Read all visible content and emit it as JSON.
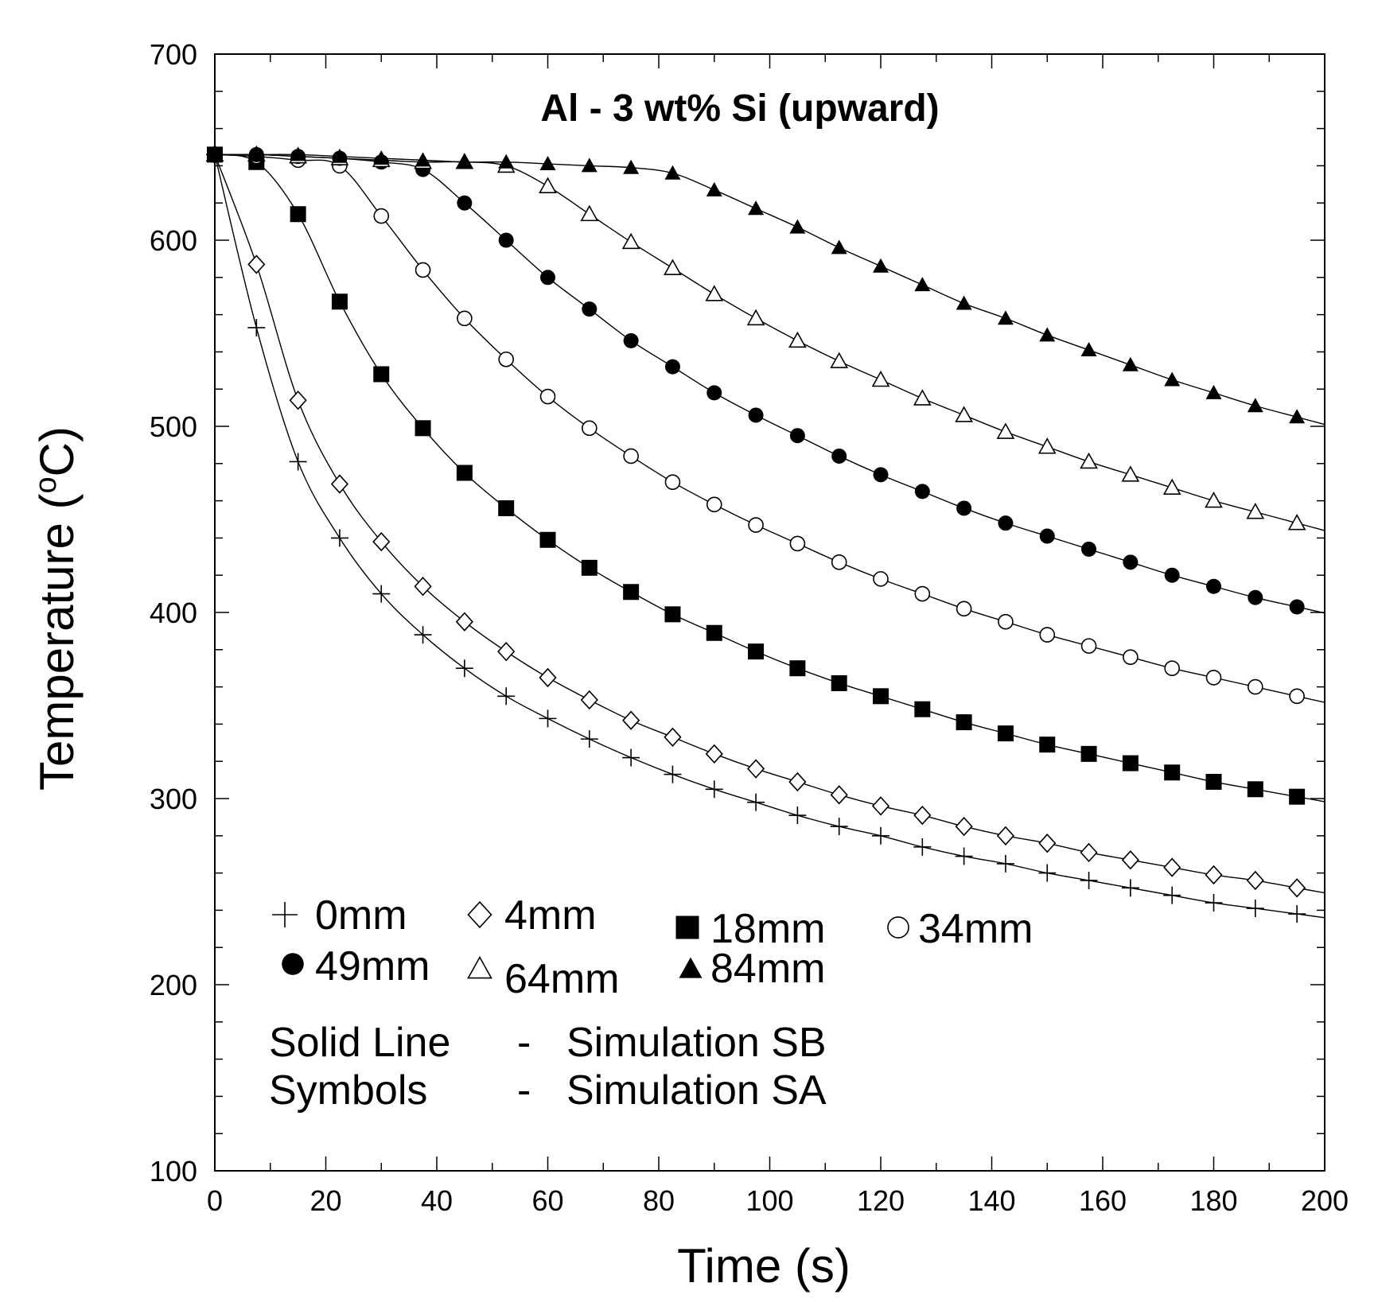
{
  "chart_data": {
    "type": "line",
    "title": "Al - 3 wt% Si (upward)",
    "xlabel": "Time (s)",
    "ylabel_main": "Temperature (",
    "ylabel_sup": "o",
    "ylabel_end": "C)",
    "xlim": [
      0,
      200
    ],
    "ylim": [
      100,
      700
    ],
    "xticks": [
      0,
      20,
      40,
      60,
      80,
      100,
      120,
      140,
      160,
      180,
      200
    ],
    "yticks": [
      100,
      200,
      300,
      400,
      500,
      600,
      700
    ],
    "grid": false,
    "line_note": {
      "left": "Solid Line",
      "dash": "-",
      "right": "Simulation SB"
    },
    "symbol_note": {
      "left": "Symbols",
      "dash": "-",
      "right": "Simulation SA"
    },
    "series": [
      {
        "name": "0mm",
        "marker": "plus",
        "x": [
          0,
          7.5,
          15,
          22.5,
          30,
          37.5,
          45,
          52.5,
          60,
          67.5,
          75,
          82.5,
          90,
          97.5,
          105,
          112.5,
          120,
          127.5,
          135,
          142.5,
          150,
          157.5,
          165,
          172.5,
          180,
          187.5,
          195
        ],
        "values": [
          646,
          553,
          481,
          440,
          410,
          388,
          370,
          355,
          343,
          332,
          322,
          313,
          305,
          298,
          291,
          285,
          280,
          274,
          269,
          265,
          260,
          256,
          252,
          248,
          244,
          241,
          238
        ]
      },
      {
        "name": "4mm",
        "marker": "diamond-open",
        "x": [
          0,
          7.5,
          15,
          22.5,
          30,
          37.5,
          45,
          52.5,
          60,
          67.5,
          75,
          82.5,
          90,
          97.5,
          105,
          112.5,
          120,
          127.5,
          135,
          142.5,
          150,
          157.5,
          165,
          172.5,
          180,
          187.5,
          195
        ],
        "values": [
          646,
          587,
          514,
          469,
          438,
          414,
          395,
          379,
          365,
          353,
          342,
          333,
          324,
          316,
          309,
          302,
          296,
          291,
          285,
          280,
          276,
          271,
          267,
          263,
          259,
          256,
          252
        ]
      },
      {
        "name": "18mm",
        "marker": "square-filled",
        "x": [
          0,
          7.5,
          15,
          22.5,
          30,
          37.5,
          45,
          52.5,
          60,
          67.5,
          75,
          82.5,
          90,
          97.5,
          105,
          112.5,
          120,
          127.5,
          135,
          142.5,
          150,
          157.5,
          165,
          172.5,
          180,
          187.5,
          195
        ],
        "values": [
          646,
          642,
          614,
          567,
          528,
          499,
          475,
          456,
          439,
          424,
          411,
          399,
          389,
          379,
          370,
          362,
          355,
          348,
          341,
          335,
          329,
          324,
          319,
          314,
          309,
          305,
          301
        ]
      },
      {
        "name": "34mm",
        "marker": "circle-open",
        "x": [
          0,
          7.5,
          15,
          22.5,
          30,
          37.5,
          45,
          52.5,
          60,
          67.5,
          75,
          82.5,
          90,
          97.5,
          105,
          112.5,
          120,
          127.5,
          135,
          142.5,
          150,
          157.5,
          165,
          172.5,
          180,
          187.5,
          195
        ],
        "values": [
          646,
          645,
          643,
          640,
          613,
          584,
          558,
          536,
          516,
          499,
          484,
          470,
          458,
          447,
          437,
          427,
          418,
          410,
          402,
          395,
          388,
          382,
          376,
          370,
          365,
          360,
          355
        ]
      },
      {
        "name": "49mm",
        "marker": "circle-filled",
        "x": [
          0,
          7.5,
          15,
          22.5,
          30,
          37.5,
          45,
          52.5,
          60,
          67.5,
          75,
          82.5,
          90,
          97.5,
          105,
          112.5,
          120,
          127.5,
          135,
          142.5,
          150,
          157.5,
          165,
          172.5,
          180,
          187.5,
          195
        ],
        "values": [
          646,
          646,
          645,
          644,
          642,
          638,
          620,
          600,
          580,
          563,
          546,
          532,
          518,
          506,
          495,
          484,
          474,
          465,
          456,
          448,
          441,
          434,
          427,
          420,
          414,
          408,
          403
        ]
      },
      {
        "name": "64mm",
        "marker": "triangle-open",
        "x": [
          0,
          7.5,
          15,
          22.5,
          30,
          37.5,
          45,
          52.5,
          60,
          67.5,
          75,
          82.5,
          90,
          97.5,
          105,
          112.5,
          120,
          127.5,
          135,
          142.5,
          150,
          157.5,
          165,
          172.5,
          180,
          187.5,
          195
        ],
        "values": [
          646,
          646,
          645,
          644,
          643,
          642,
          642,
          640,
          629,
          614,
          599,
          585,
          571,
          558,
          546,
          535,
          525,
          515,
          506,
          497,
          489,
          481,
          474,
          467,
          460,
          454,
          448
        ]
      },
      {
        "name": "84mm",
        "marker": "triangle-filled",
        "x": [
          0,
          7.5,
          15,
          22.5,
          30,
          37.5,
          45,
          52.5,
          60,
          67.5,
          75,
          82.5,
          90,
          97.5,
          105,
          112.5,
          120,
          127.5,
          135,
          142.5,
          150,
          157.5,
          165,
          172.5,
          180,
          187.5,
          195
        ],
        "values": [
          646,
          646,
          646,
          645,
          644,
          643,
          642,
          642,
          641,
          640,
          639,
          636,
          627,
          617,
          607,
          596,
          586,
          576,
          566,
          558,
          549,
          541,
          533,
          525,
          518,
          511,
          505
        ]
      }
    ]
  }
}
